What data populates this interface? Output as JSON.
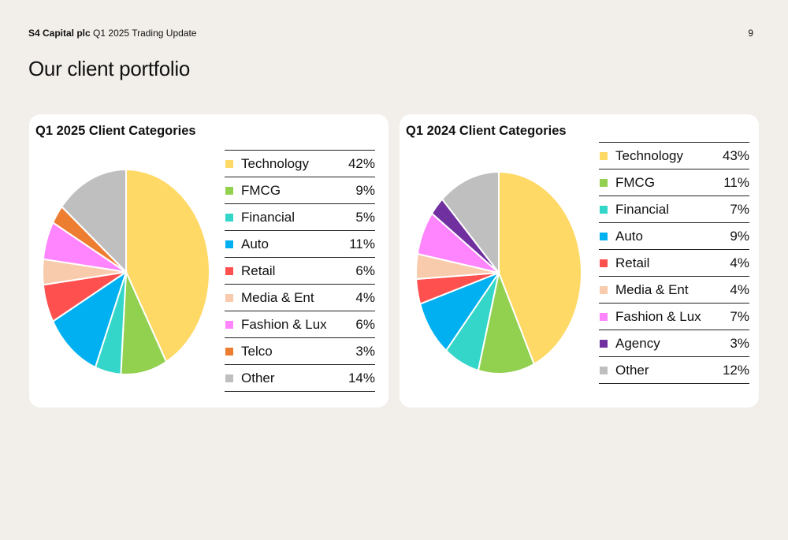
{
  "header": {
    "company": "S4 Capital plc",
    "subtitle": "Q1 2025 Trading Update"
  },
  "page_number": "9",
  "title": "Our client portfolio",
  "chart_data": [
    {
      "type": "pie",
      "title": "Q1 2025 Client Categories",
      "slices": [
        {
          "label": "Technology",
          "value": 42,
          "display": "42%",
          "color": "#ffd966"
        },
        {
          "label": "FMCG",
          "value": 9,
          "display": "9%",
          "color": "#92d050"
        },
        {
          "label": "Financial",
          "value": 5,
          "display": "5%",
          "color": "#33d6c8"
        },
        {
          "label": "Auto",
          "value": 11,
          "display": "11%",
          "color": "#00b0f0"
        },
        {
          "label": "Retail",
          "value": 6,
          "display": "6%",
          "color": "#ff5050"
        },
        {
          "label": "Media & Ent",
          "value": 4,
          "display": "4%",
          "color": "#f8cbad"
        },
        {
          "label": "Fashion & Lux",
          "value": 6,
          "display": "6%",
          "color": "#ff85ff"
        },
        {
          "label": "Telco",
          "value": 3,
          "display": "3%",
          "color": "#ed7d31"
        },
        {
          "label": "Other",
          "value": 14,
          "display": "14%",
          "color": "#bfbfbf"
        }
      ]
    },
    {
      "type": "pie",
      "title": "Q1 2024 Client Categories",
      "slices": [
        {
          "label": "Technology",
          "value": 43,
          "display": "43%",
          "color": "#ffd966"
        },
        {
          "label": "FMCG",
          "value": 11,
          "display": "11%",
          "color": "#92d050"
        },
        {
          "label": "Financial",
          "value": 7,
          "display": "7%",
          "color": "#33d6c8"
        },
        {
          "label": "Auto",
          "value": 9,
          "display": "9%",
          "color": "#00b0f0"
        },
        {
          "label": "Retail",
          "value": 4,
          "display": "4%",
          "color": "#ff5050"
        },
        {
          "label": "Media & Ent",
          "value": 4,
          "display": "4%",
          "color": "#f8cbad"
        },
        {
          "label": "Fashion & Lux",
          "value": 7,
          "display": "7%",
          "color": "#ff85ff"
        },
        {
          "label": "Agency",
          "value": 3,
          "display": "3%",
          "color": "#7030a0"
        },
        {
          "label": "Other",
          "value": 12,
          "display": "12%",
          "color": "#bfbfbf"
        }
      ]
    }
  ]
}
